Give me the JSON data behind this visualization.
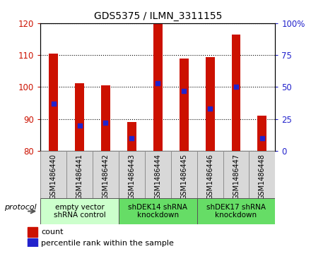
{
  "title": "GDS5375 / ILMN_3311155",
  "samples": [
    "GSM1486440",
    "GSM1486441",
    "GSM1486442",
    "GSM1486443",
    "GSM1486444",
    "GSM1486445",
    "GSM1486446",
    "GSM1486447",
    "GSM1486448"
  ],
  "counts": [
    110.5,
    101.3,
    100.5,
    89.0,
    120.0,
    109.0,
    109.3,
    116.5,
    91.0
  ],
  "percentiles": [
    37,
    20,
    22,
    10,
    53,
    47,
    33,
    50,
    10
  ],
  "ylim_left": [
    80,
    120
  ],
  "ylim_right": [
    0,
    100
  ],
  "yticks_left": [
    80,
    90,
    100,
    110,
    120
  ],
  "yticks_right": [
    0,
    25,
    50,
    75,
    100
  ],
  "bar_color": "#cc1100",
  "dot_color": "#2222cc",
  "bar_width": 0.35,
  "bar_bottom": 80,
  "groups": [
    {
      "label": "empty vector\nshRNA control",
      "start": 0,
      "end": 3,
      "color": "#ccffcc"
    },
    {
      "label": "shDEK14 shRNA\nknockdown",
      "start": 3,
      "end": 6,
      "color": "#66dd66"
    },
    {
      "label": "shDEK17 shRNA\nknockdown",
      "start": 6,
      "end": 9,
      "color": "#66dd66"
    }
  ],
  "protocol_label": "protocol",
  "legend_items": [
    {
      "color": "#cc1100",
      "label": "count"
    },
    {
      "color": "#2222cc",
      "label": "percentile rank within the sample"
    }
  ],
  "bg_color": "#ffffff",
  "plot_bg": "#ffffff",
  "grid_color": "#000000"
}
